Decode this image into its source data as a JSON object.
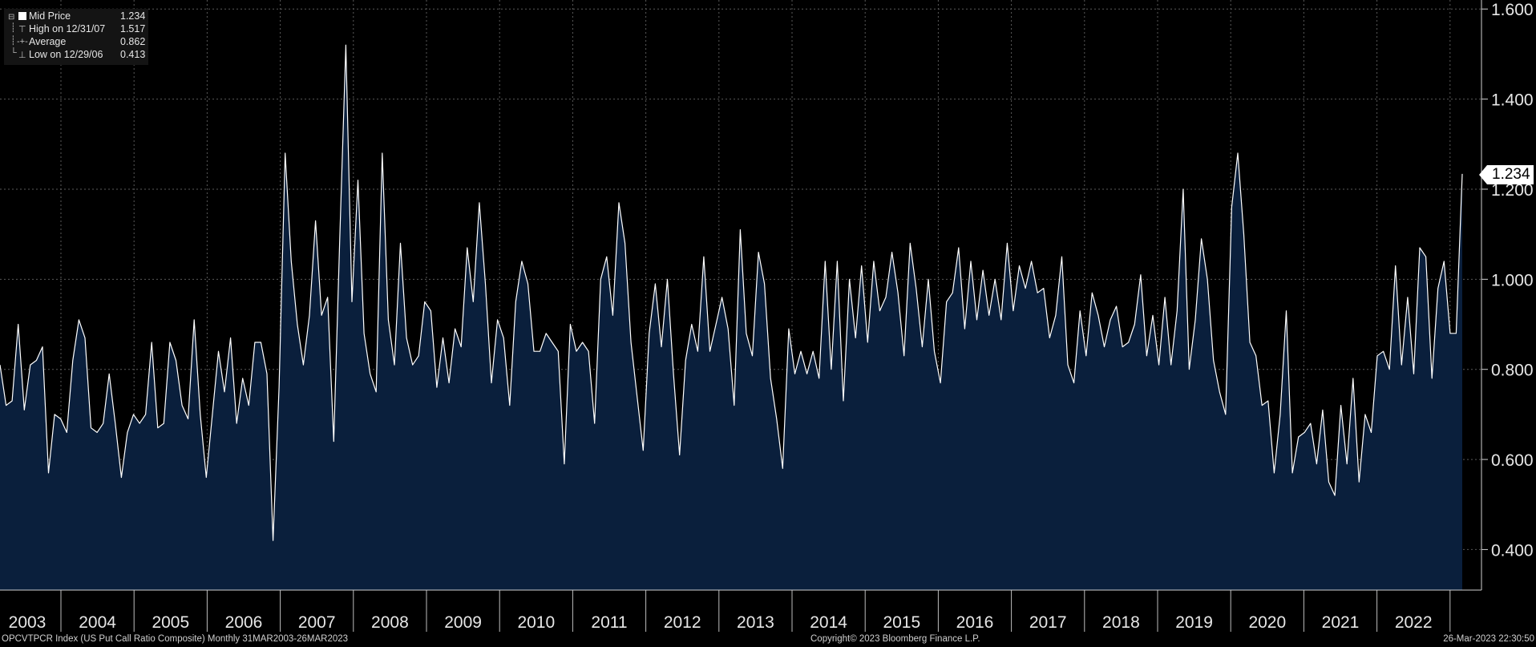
{
  "legend": {
    "rows": [
      {
        "label": "Mid Price",
        "value": "1.234",
        "icon": "square-icon"
      },
      {
        "label": "High on 12/31/07",
        "value": "1.517",
        "icon": "high-marker-icon"
      },
      {
        "label": "Average",
        "value": "0.862",
        "icon": "average-marker-icon"
      },
      {
        "label": "Low on 12/29/06",
        "value": "0.413",
        "icon": "low-marker-icon"
      }
    ]
  },
  "last_value_label": "1.234",
  "footer": {
    "left": "OPCVTPCR Index (US Put Call Ratio Composite)  Monthly 31MAR2003-26MAR2023",
    "center": "Copyright© 2023 Bloomberg Finance L.P.",
    "right": "26-Mar-2023 22:30:50"
  },
  "colors": {
    "background": "#000000",
    "area_fill": "#0a1f3c",
    "line": "#ffffff",
    "grid": "#4a4a4a"
  },
  "chart_data": {
    "type": "area",
    "title": "",
    "xlabel": "",
    "ylabel": "",
    "x_start": "2003-03",
    "x_end": "2023-03",
    "x_ticks": [
      "2003",
      "2004",
      "2005",
      "2006",
      "2007",
      "2008",
      "2009",
      "2010",
      "2011",
      "2012",
      "2013",
      "2014",
      "2015",
      "2016",
      "2017",
      "2018",
      "2019",
      "2020",
      "2021",
      "2022"
    ],
    "y_ticks": [
      "0.400",
      "0.600",
      "0.800",
      "1.000",
      "1.200",
      "1.400",
      "1.600"
    ],
    "ylim": [
      0.31,
      1.62
    ],
    "grid": true,
    "legend_position": "top-left",
    "series": [
      {
        "name": "Mid Price",
        "values": [
          0.81,
          0.72,
          0.73,
          0.9,
          0.71,
          0.81,
          0.82,
          0.85,
          0.57,
          0.7,
          0.69,
          0.66,
          0.82,
          0.91,
          0.87,
          0.67,
          0.66,
          0.68,
          0.79,
          0.68,
          0.56,
          0.66,
          0.7,
          0.68,
          0.7,
          0.86,
          0.67,
          0.68,
          0.86,
          0.82,
          0.72,
          0.69,
          0.91,
          0.7,
          0.56,
          0.7,
          0.84,
          0.75,
          0.87,
          0.68,
          0.78,
          0.72,
          0.86,
          0.86,
          0.79,
          0.42,
          0.76,
          1.28,
          1.04,
          0.9,
          0.81,
          0.92,
          1.13,
          0.92,
          0.96,
          0.64,
          1.09,
          1.52,
          0.95,
          1.22,
          0.88,
          0.79,
          0.75,
          1.28,
          0.91,
          0.81,
          1.08,
          0.87,
          0.81,
          0.83,
          0.95,
          0.93,
          0.76,
          0.87,
          0.77,
          0.89,
          0.85,
          1.07,
          0.95,
          1.17,
          0.99,
          0.77,
          0.91,
          0.87,
          0.72,
          0.95,
          1.04,
          0.99,
          0.84,
          0.84,
          0.88,
          0.86,
          0.84,
          0.59,
          0.9,
          0.84,
          0.86,
          0.84,
          0.68,
          1.0,
          1.05,
          0.92,
          1.17,
          1.08,
          0.86,
          0.74,
          0.62,
          0.88,
          0.99,
          0.85,
          1.0,
          0.79,
          0.61,
          0.82,
          0.9,
          0.84,
          1.05,
          0.84,
          0.9,
          0.96,
          0.89,
          0.72,
          1.11,
          0.88,
          0.83,
          1.06,
          0.99,
          0.78,
          0.69,
          0.58,
          0.89,
          0.79,
          0.84,
          0.79,
          0.84,
          0.78,
          1.04,
          0.8,
          1.04,
          0.73,
          1.0,
          0.87,
          1.03,
          0.86,
          1.04,
          0.93,
          0.96,
          1.06,
          0.97,
          0.83,
          1.08,
          0.98,
          0.85,
          1.0,
          0.84,
          0.77,
          0.95,
          0.97,
          1.07,
          0.89,
          1.04,
          0.91,
          1.02,
          0.92,
          1.0,
          0.91,
          1.08,
          0.93,
          1.03,
          0.98,
          1.04,
          0.97,
          0.98,
          0.87,
          0.92,
          1.05,
          0.81,
          0.77,
          0.93,
          0.83,
          0.97,
          0.92,
          0.85,
          0.91,
          0.94,
          0.85,
          0.86,
          0.9,
          1.01,
          0.83,
          0.92,
          0.81,
          0.96,
          0.81,
          0.93,
          1.2,
          0.8,
          0.91,
          1.09,
          1.0,
          0.82,
          0.75,
          0.7,
          1.16,
          1.28,
          1.1,
          0.86,
          0.83,
          0.72,
          0.73,
          0.57,
          0.7,
          0.93,
          0.57,
          0.65,
          0.66,
          0.68,
          0.59,
          0.71,
          0.55,
          0.52,
          0.72,
          0.59,
          0.78,
          0.55,
          0.7,
          0.66,
          0.83,
          0.84,
          0.8,
          1.03,
          0.81,
          0.96,
          0.79,
          1.07,
          1.05,
          0.78,
          0.98,
          1.04,
          0.88,
          0.88,
          1.234
        ]
      }
    ]
  }
}
